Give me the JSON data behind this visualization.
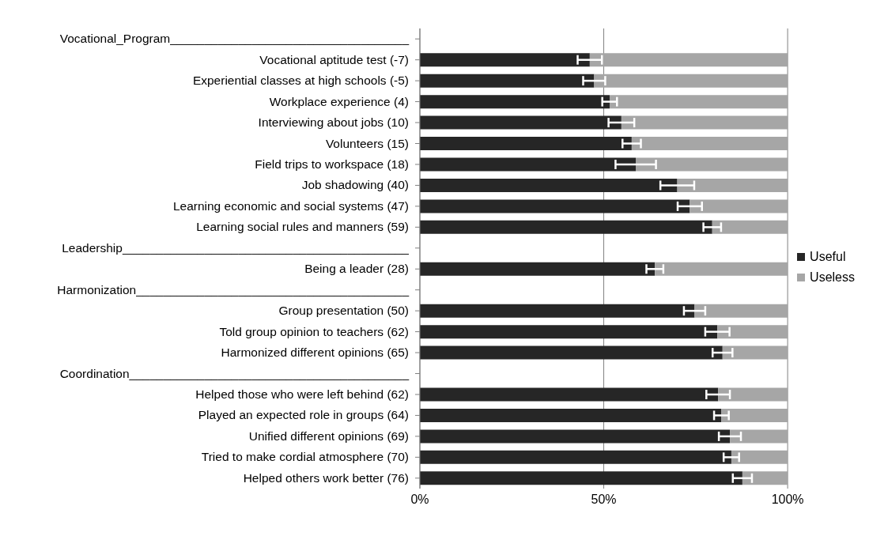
{
  "chart_data": {
    "type": "bar",
    "orientation": "horizontal",
    "stacked": true,
    "categories": [
      "Vocational_Program___________________________________",
      "Vocational aptitude test  (-7)",
      "Experiential classes at high schools (-5)",
      "Workplace experience  (4)",
      "Interviewing about jobs (10)",
      "Volunteers (15)",
      "Field trips to workspace (18)",
      "Job shadowing (40)",
      "Learning economic and social systems (47)",
      "Learning social rules and manners (59)",
      "Leadership__________________________________________",
      "Being a leader (28)",
      "Harmonization________________________________________",
      "Group presentation (50)",
      "Told group opinion to teachers (62)",
      "Harmonized  different opinions (65)",
      "Coordination_________________________________________",
      "Helped those who were left behind (62)",
      "Played an expected role in groups  (64)",
      "Unified different opinions (69)",
      "Tried to make cordial atmosphere (70)",
      "Helped others work better (76)"
    ],
    "series": [
      {
        "name": "Useful",
        "color": "#262626",
        "values": [
          null,
          46.2,
          47.4,
          51.6,
          54.8,
          57.6,
          58.7,
          70.0,
          73.4,
          79.5,
          null,
          63.9,
          null,
          74.7,
          80.9,
          82.3,
          null,
          81.1,
          82.0,
          84.3,
          84.7,
          87.7
        ],
        "errors": [
          null,
          3.3,
          3,
          2,
          3.5,
          2.5,
          5.5,
          4.6,
          3.3,
          2.4,
          null,
          2.3,
          null,
          2.9,
          3.3,
          2.7,
          null,
          3.2,
          2,
          3,
          2.1,
          2.6
        ]
      },
      {
        "name": "Useless",
        "color": "#a6a6a6",
        "values": [
          null,
          53.8,
          52.6,
          48.4,
          45.2,
          42.4,
          41.3,
          30.0,
          26.6,
          20.5,
          null,
          36.1,
          null,
          25.3,
          19.1,
          17.7,
          null,
          18.9,
          18.0,
          15.7,
          15.3,
          12.3
        ]
      }
    ],
    "xlim": [
      0,
      100
    ],
    "xticks": [
      {
        "value": 0,
        "label": "0%"
      },
      {
        "value": 50,
        "label": "50%"
      },
      {
        "value": 100,
        "label": "100%"
      }
    ],
    "grid": "x",
    "legend": "right"
  }
}
